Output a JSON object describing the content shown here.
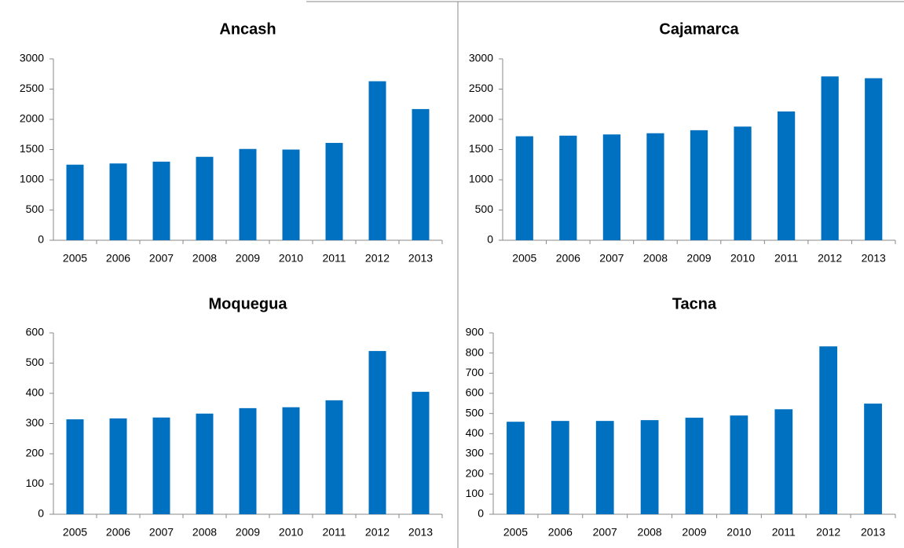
{
  "chart_data": [
    {
      "type": "bar",
      "title": "Ancash",
      "categories": [
        "2005",
        "2006",
        "2007",
        "2008",
        "2009",
        "2010",
        "2011",
        "2012",
        "2013"
      ],
      "values": [
        1250,
        1270,
        1300,
        1380,
        1510,
        1500,
        1610,
        2630,
        2170
      ],
      "color": "#0070c0",
      "ylim": [
        0,
        3000
      ],
      "yticks": [
        0,
        500,
        1000,
        1500,
        2000,
        2500,
        3000
      ]
    },
    {
      "type": "bar",
      "title": "Cajamarca",
      "categories": [
        "2005",
        "2006",
        "2007",
        "2008",
        "2009",
        "2010",
        "2011",
        "2012",
        "2013"
      ],
      "values": [
        1720,
        1730,
        1750,
        1770,
        1820,
        1880,
        2130,
        2710,
        2680
      ],
      "color": "#0070c0",
      "ylim": [
        0,
        3000
      ],
      "yticks": [
        0,
        500,
        1000,
        1500,
        2000,
        2500,
        3000
      ]
    },
    {
      "type": "bar",
      "title": "Moquegua",
      "categories": [
        "2005",
        "2006",
        "2007",
        "2008",
        "2009",
        "2010",
        "2011",
        "2012",
        "2013"
      ],
      "values": [
        314,
        317,
        320,
        333,
        351,
        354,
        377,
        540,
        405
      ],
      "color": "#0070c0",
      "ylim": [
        0,
        600
      ],
      "yticks": [
        0,
        100,
        200,
        300,
        400,
        500,
        600
      ]
    },
    {
      "type": "bar",
      "title": "Tacna",
      "categories": [
        "2005",
        "2006",
        "2007",
        "2008",
        "2009",
        "2010",
        "2011",
        "2012",
        "2013"
      ],
      "values": [
        459,
        463,
        463,
        467,
        479,
        490,
        521,
        833,
        549
      ],
      "color": "#0070c0",
      "ylim": [
        0,
        900
      ],
      "yticks": [
        0,
        100,
        200,
        300,
        400,
        500,
        600,
        700,
        800,
        900
      ]
    }
  ]
}
